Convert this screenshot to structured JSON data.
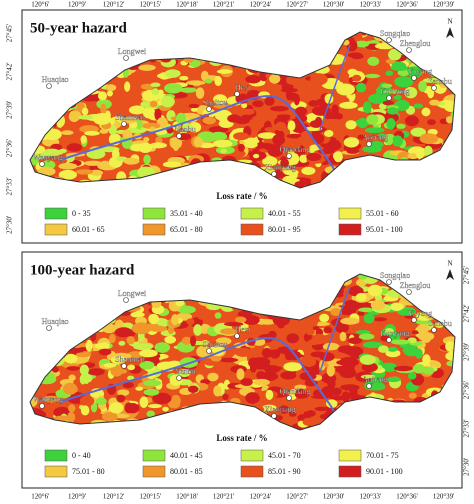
{
  "axes": {
    "top_x_labels": [
      "120°6'",
      "120°9'",
      "120°12'",
      "120°15'",
      "120°18'",
      "120°21'",
      "120°24'",
      "120°27'",
      "120°30'",
      "120°33'",
      "120°36'",
      "120°39'"
    ],
    "bottom_x_labels": [
      "120°6'",
      "120°9'",
      "120°12'",
      "120°15'",
      "120°18'",
      "120°21'",
      "120°24'",
      "120°27'",
      "120°30'",
      "120°33'",
      "120°36'",
      "120°39'"
    ],
    "left_y_labels": [
      "27°45'",
      "27°42'",
      "27°39'",
      "27°36'",
      "27°33'",
      "27°30'"
    ],
    "right_y_labels": [
      "27°45'",
      "27°42'",
      "27°39'",
      "27°36'",
      "27°33'",
      "27°30'"
    ]
  },
  "north": "N",
  "places": [
    "Longwei",
    "Huaqiao",
    "Songqiao",
    "Zhenglou",
    "Yuyang",
    "Sanabu",
    "Kunyang",
    "Aojiang",
    "Hexi",
    "Shuitou",
    "Qiandang",
    "Xiaojiang",
    "Wanyang",
    "Nanbu",
    "Shanmen"
  ],
  "panels": [
    {
      "title": "50-year hazard",
      "legend_title": "Loss rate / %",
      "legend": [
        {
          "label": "0 - 35",
          "color": "#3cd23c"
        },
        {
          "label": "35.01 - 40",
          "color": "#8ee63c"
        },
        {
          "label": "40.01 - 55",
          "color": "#c8f04a"
        },
        {
          "label": "55.01 - 60",
          "color": "#f2f04c"
        },
        {
          "label": "60.01 - 65",
          "color": "#f5c842"
        },
        {
          "label": "65.01 - 80",
          "color": "#f0962a"
        },
        {
          "label": "80.01 - 95",
          "color": "#e8501e"
        },
        {
          "label": "95.01 - 100",
          "color": "#d21e1e"
        }
      ]
    },
    {
      "title": "100-year hazard",
      "legend_title": "Loss rate / %",
      "legend": [
        {
          "label": "0 - 40",
          "color": "#3cd23c"
        },
        {
          "label": "40.01 - 45",
          "color": "#8ee63c"
        },
        {
          "label": "45.01 - 70",
          "color": "#c8f04a"
        },
        {
          "label": "70.01 - 75",
          "color": "#f2f04c"
        },
        {
          "label": "75.01 - 80",
          "color": "#f5c842"
        },
        {
          "label": "80.01 - 85",
          "color": "#f0962a"
        },
        {
          "label": "85.01 - 90",
          "color": "#e8501e"
        },
        {
          "label": "90.01 - 100",
          "color": "#d21e1e"
        }
      ]
    }
  ]
}
